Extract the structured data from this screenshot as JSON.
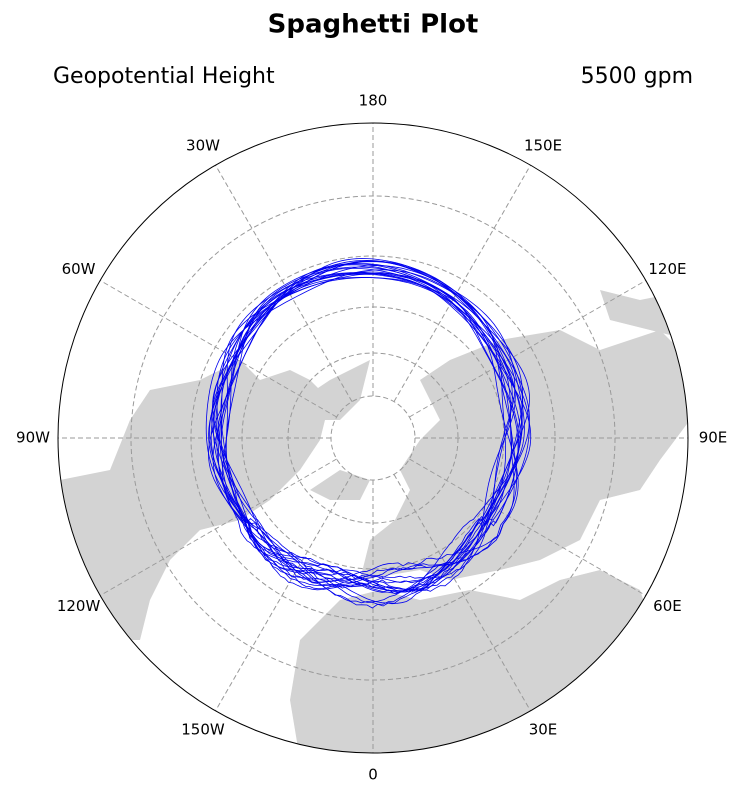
{
  "title": "Spaghetti Plot",
  "subtitle_left": "Geopotential Height",
  "subtitle_right": "5500 gpm",
  "longitude_labels": [
    "180",
    "150E",
    "120E",
    "90E",
    "60E",
    "30E",
    "0",
    "150W",
    "120W",
    "90W",
    "60W",
    "30W"
  ]
}
